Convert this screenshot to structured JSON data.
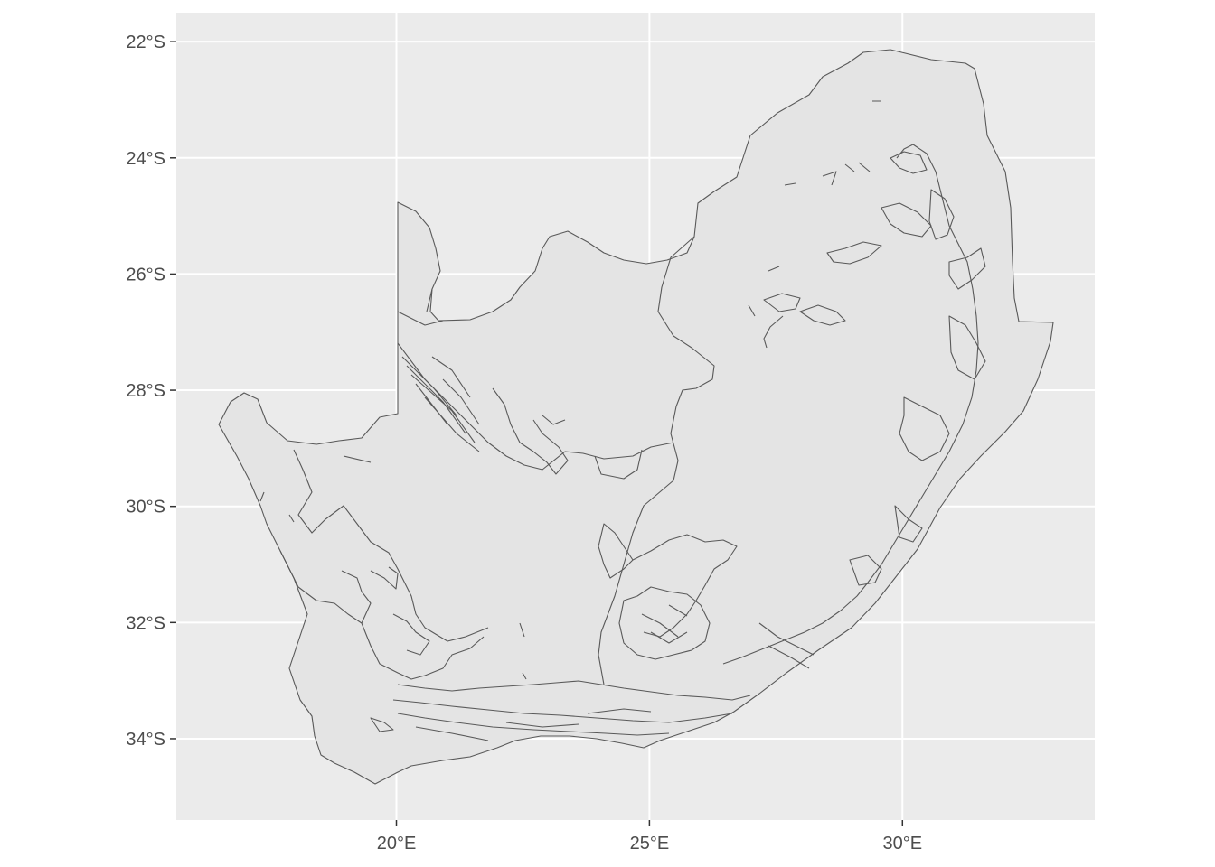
{
  "map": {
    "panel_background": "#ebebeb",
    "land_fill": "#e4e4e4",
    "border_color": "#595959",
    "grid_color": "#ffffff",
    "grid": true,
    "x_axis": {
      "ticks": [
        20,
        25,
        30
      ],
      "labels": [
        "20°E",
        "25°E",
        "30°E"
      ],
      "range": [
        15.65,
        33.8
      ]
    },
    "y_axis": {
      "ticks": [
        -22,
        -24,
        -26,
        -28,
        -30,
        -32,
        -34
      ],
      "labels": [
        "22°S",
        "24°S",
        "26°S",
        "28°S",
        "30°S",
        "32°S",
        "34°S"
      ],
      "range": [
        -35.4,
        -21.5
      ]
    }
  }
}
